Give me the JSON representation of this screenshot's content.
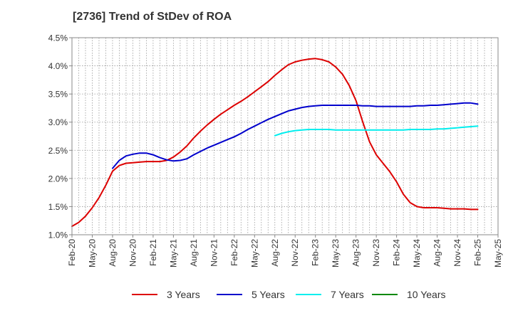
{
  "title": "[2736]  Trend of StDev of ROA",
  "chart_data": {
    "type": "line",
    "title": "[2736]  Trend of StDev of ROA",
    "xlabel": "",
    "ylabel": "",
    "x_ticks": [
      "Feb-20",
      "May-20",
      "Aug-20",
      "Nov-20",
      "Feb-21",
      "May-21",
      "Aug-21",
      "Nov-21",
      "Feb-22",
      "May-22",
      "Aug-22",
      "Nov-22",
      "Feb-23",
      "May-23",
      "Aug-23",
      "Nov-23",
      "Feb-24",
      "May-24",
      "Aug-24",
      "Nov-24",
      "Feb-25",
      "May-25"
    ],
    "y_ticks": [
      "1.0%",
      "1.5%",
      "2.0%",
      "2.5%",
      "3.0%",
      "3.5%",
      "4.0%",
      "4.5%"
    ],
    "ylim": [
      1.0,
      4.5
    ],
    "y_unit": "%",
    "grid": true,
    "legend_position": "bottom",
    "series": [
      {
        "name": "3 Years",
        "color": "#dd0000",
        "x": [
          "Feb-20",
          "Mar-20",
          "Apr-20",
          "May-20",
          "Jun-20",
          "Jul-20",
          "Aug-20",
          "Sep-20",
          "Oct-20",
          "Nov-20",
          "Dec-20",
          "Jan-21",
          "Feb-21",
          "Mar-21",
          "Apr-21",
          "May-21",
          "Jun-21",
          "Jul-21",
          "Aug-21",
          "Sep-21",
          "Oct-21",
          "Nov-21",
          "Dec-21",
          "Jan-22",
          "Feb-22",
          "Mar-22",
          "Apr-22",
          "May-22",
          "Jun-22",
          "Jul-22",
          "Aug-22",
          "Sep-22",
          "Oct-22",
          "Nov-22",
          "Dec-22",
          "Jan-23",
          "Feb-23",
          "Mar-23",
          "Apr-23",
          "May-23",
          "Jun-23",
          "Jul-23",
          "Aug-23",
          "Sep-23",
          "Oct-23",
          "Nov-23",
          "Dec-23",
          "Jan-24",
          "Feb-24",
          "Mar-24",
          "Apr-24",
          "May-24",
          "Jun-24",
          "Jul-24",
          "Aug-24",
          "Sep-24",
          "Oct-24",
          "Nov-24",
          "Dec-24",
          "Jan-25",
          "Feb-25"
        ],
        "values": [
          1.15,
          1.22,
          1.33,
          1.48,
          1.66,
          1.88,
          2.13,
          2.23,
          2.27,
          2.28,
          2.29,
          2.3,
          2.3,
          2.3,
          2.32,
          2.38,
          2.47,
          2.58,
          2.72,
          2.84,
          2.95,
          3.05,
          3.14,
          3.22,
          3.3,
          3.37,
          3.45,
          3.54,
          3.63,
          3.72,
          3.83,
          3.93,
          4.02,
          4.07,
          4.1,
          4.12,
          4.13,
          4.11,
          4.07,
          3.98,
          3.85,
          3.65,
          3.38,
          3.0,
          2.65,
          2.42,
          2.27,
          2.12,
          1.94,
          1.72,
          1.57,
          1.5,
          1.48,
          1.48,
          1.48,
          1.47,
          1.46,
          1.46,
          1.46,
          1.45,
          1.45
        ]
      },
      {
        "name": "5 Years",
        "color": "#0000cc",
        "x": [
          "Aug-20",
          "Sep-20",
          "Oct-20",
          "Nov-20",
          "Dec-20",
          "Jan-21",
          "Feb-21",
          "Mar-21",
          "Apr-21",
          "May-21",
          "Jun-21",
          "Jul-21",
          "Aug-21",
          "Sep-21",
          "Oct-21",
          "Nov-21",
          "Dec-21",
          "Jan-22",
          "Feb-22",
          "Mar-22",
          "Apr-22",
          "May-22",
          "Jun-22",
          "Jul-22",
          "Aug-22",
          "Sep-22",
          "Oct-22",
          "Nov-22",
          "Dec-22",
          "Jan-23",
          "Feb-23",
          "Mar-23",
          "Apr-23",
          "May-23",
          "Jun-23",
          "Jul-23",
          "Aug-23",
          "Sep-23",
          "Oct-23",
          "Nov-23",
          "Dec-23",
          "Jan-24",
          "Feb-24",
          "Mar-24",
          "Apr-24",
          "May-24",
          "Jun-24",
          "Jul-24",
          "Aug-24",
          "Sep-24",
          "Oct-24",
          "Nov-24",
          "Dec-24",
          "Jan-25",
          "Feb-25"
        ],
        "values": [
          2.18,
          2.32,
          2.4,
          2.43,
          2.45,
          2.45,
          2.42,
          2.37,
          2.33,
          2.31,
          2.32,
          2.35,
          2.42,
          2.48,
          2.54,
          2.59,
          2.64,
          2.69,
          2.74,
          2.8,
          2.87,
          2.93,
          2.99,
          3.05,
          3.1,
          3.15,
          3.2,
          3.23,
          3.26,
          3.28,
          3.29,
          3.3,
          3.3,
          3.3,
          3.3,
          3.3,
          3.3,
          3.29,
          3.29,
          3.28,
          3.28,
          3.28,
          3.28,
          3.28,
          3.28,
          3.29,
          3.29,
          3.3,
          3.3,
          3.31,
          3.32,
          3.33,
          3.34,
          3.34,
          3.32
        ]
      },
      {
        "name": "7 Years",
        "color": "#00eeee",
        "x": [
          "Aug-22",
          "Sep-22",
          "Oct-22",
          "Nov-22",
          "Dec-22",
          "Jan-23",
          "Feb-23",
          "Mar-23",
          "Apr-23",
          "May-23",
          "Jun-23",
          "Jul-23",
          "Aug-23",
          "Sep-23",
          "Oct-23",
          "Nov-23",
          "Dec-23",
          "Jan-24",
          "Feb-24",
          "Mar-24",
          "Apr-24",
          "May-24",
          "Jun-24",
          "Jul-24",
          "Aug-24",
          "Sep-24",
          "Oct-24",
          "Nov-24",
          "Dec-24",
          "Jan-25",
          "Feb-25"
        ],
        "values": [
          2.76,
          2.8,
          2.83,
          2.85,
          2.86,
          2.87,
          2.87,
          2.87,
          2.87,
          2.86,
          2.86,
          2.86,
          2.86,
          2.86,
          2.86,
          2.86,
          2.86,
          2.86,
          2.86,
          2.86,
          2.87,
          2.87,
          2.87,
          2.87,
          2.88,
          2.88,
          2.89,
          2.9,
          2.91,
          2.92,
          2.93
        ]
      },
      {
        "name": "10 Years",
        "color": "#008800",
        "x": [],
        "values": []
      }
    ]
  }
}
